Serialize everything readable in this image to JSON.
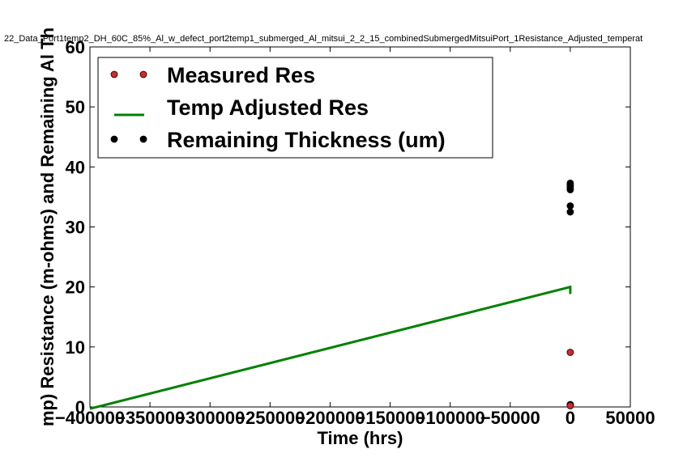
{
  "chart_data": {
    "type": "scatter",
    "title": "22_Data_Port1temp2_DH_60C_85%_Al_w_defect_port2temp1_submerged_Al_mitsui_2_2_15_combinedSubmergedMitsuiPort_1Resistance_Adjusted_temperat",
    "xlabel": "Time (hrs)",
    "ylabel": "mp) Resistance (m-ohms) and Remaining Al Th",
    "xlim": [
      -400000,
      50000
    ],
    "ylim": [
      0,
      60
    ],
    "x_ticks": [
      -400000,
      -350000,
      -300000,
      -250000,
      -200000,
      -150000,
      -100000,
      -50000,
      0,
      50000
    ],
    "y_ticks": [
      0,
      10,
      20,
      30,
      40,
      50,
      60
    ],
    "x_tick_labels": [
      "−400000",
      "−350000",
      "−300000",
      "−250000",
      "−200000",
      "−150000",
      "−100000",
      "−50000",
      "0",
      "50000"
    ],
    "y_tick_labels": [
      "0",
      "10",
      "20",
      "30",
      "40",
      "50",
      "60"
    ],
    "grid": false,
    "legend_position": "top-left",
    "series": [
      {
        "name": "Measured Res",
        "kind": "markers",
        "color": "#d62728",
        "points": [
          [
            0,
            9.1
          ],
          [
            0,
            0.4
          ],
          [
            0,
            0.3
          ],
          [
            0,
            0.2
          ]
        ]
      },
      {
        "name": "Temp Adjusted Res",
        "kind": "line",
        "color": "#008000",
        "points": [
          [
            -400000,
            -0.3
          ],
          [
            0,
            20.0
          ],
          [
            0,
            19.0
          ],
          [
            0,
            20.2
          ]
        ]
      },
      {
        "name": "Remaining Thickness (um)",
        "kind": "markers",
        "color": "#000000",
        "points": [
          [
            0,
            37.3
          ],
          [
            0,
            37.0
          ],
          [
            0,
            36.8
          ],
          [
            0,
            36.5
          ],
          [
            0,
            36.2
          ],
          [
            0,
            33.5
          ],
          [
            0,
            32.5
          ]
        ]
      }
    ]
  }
}
